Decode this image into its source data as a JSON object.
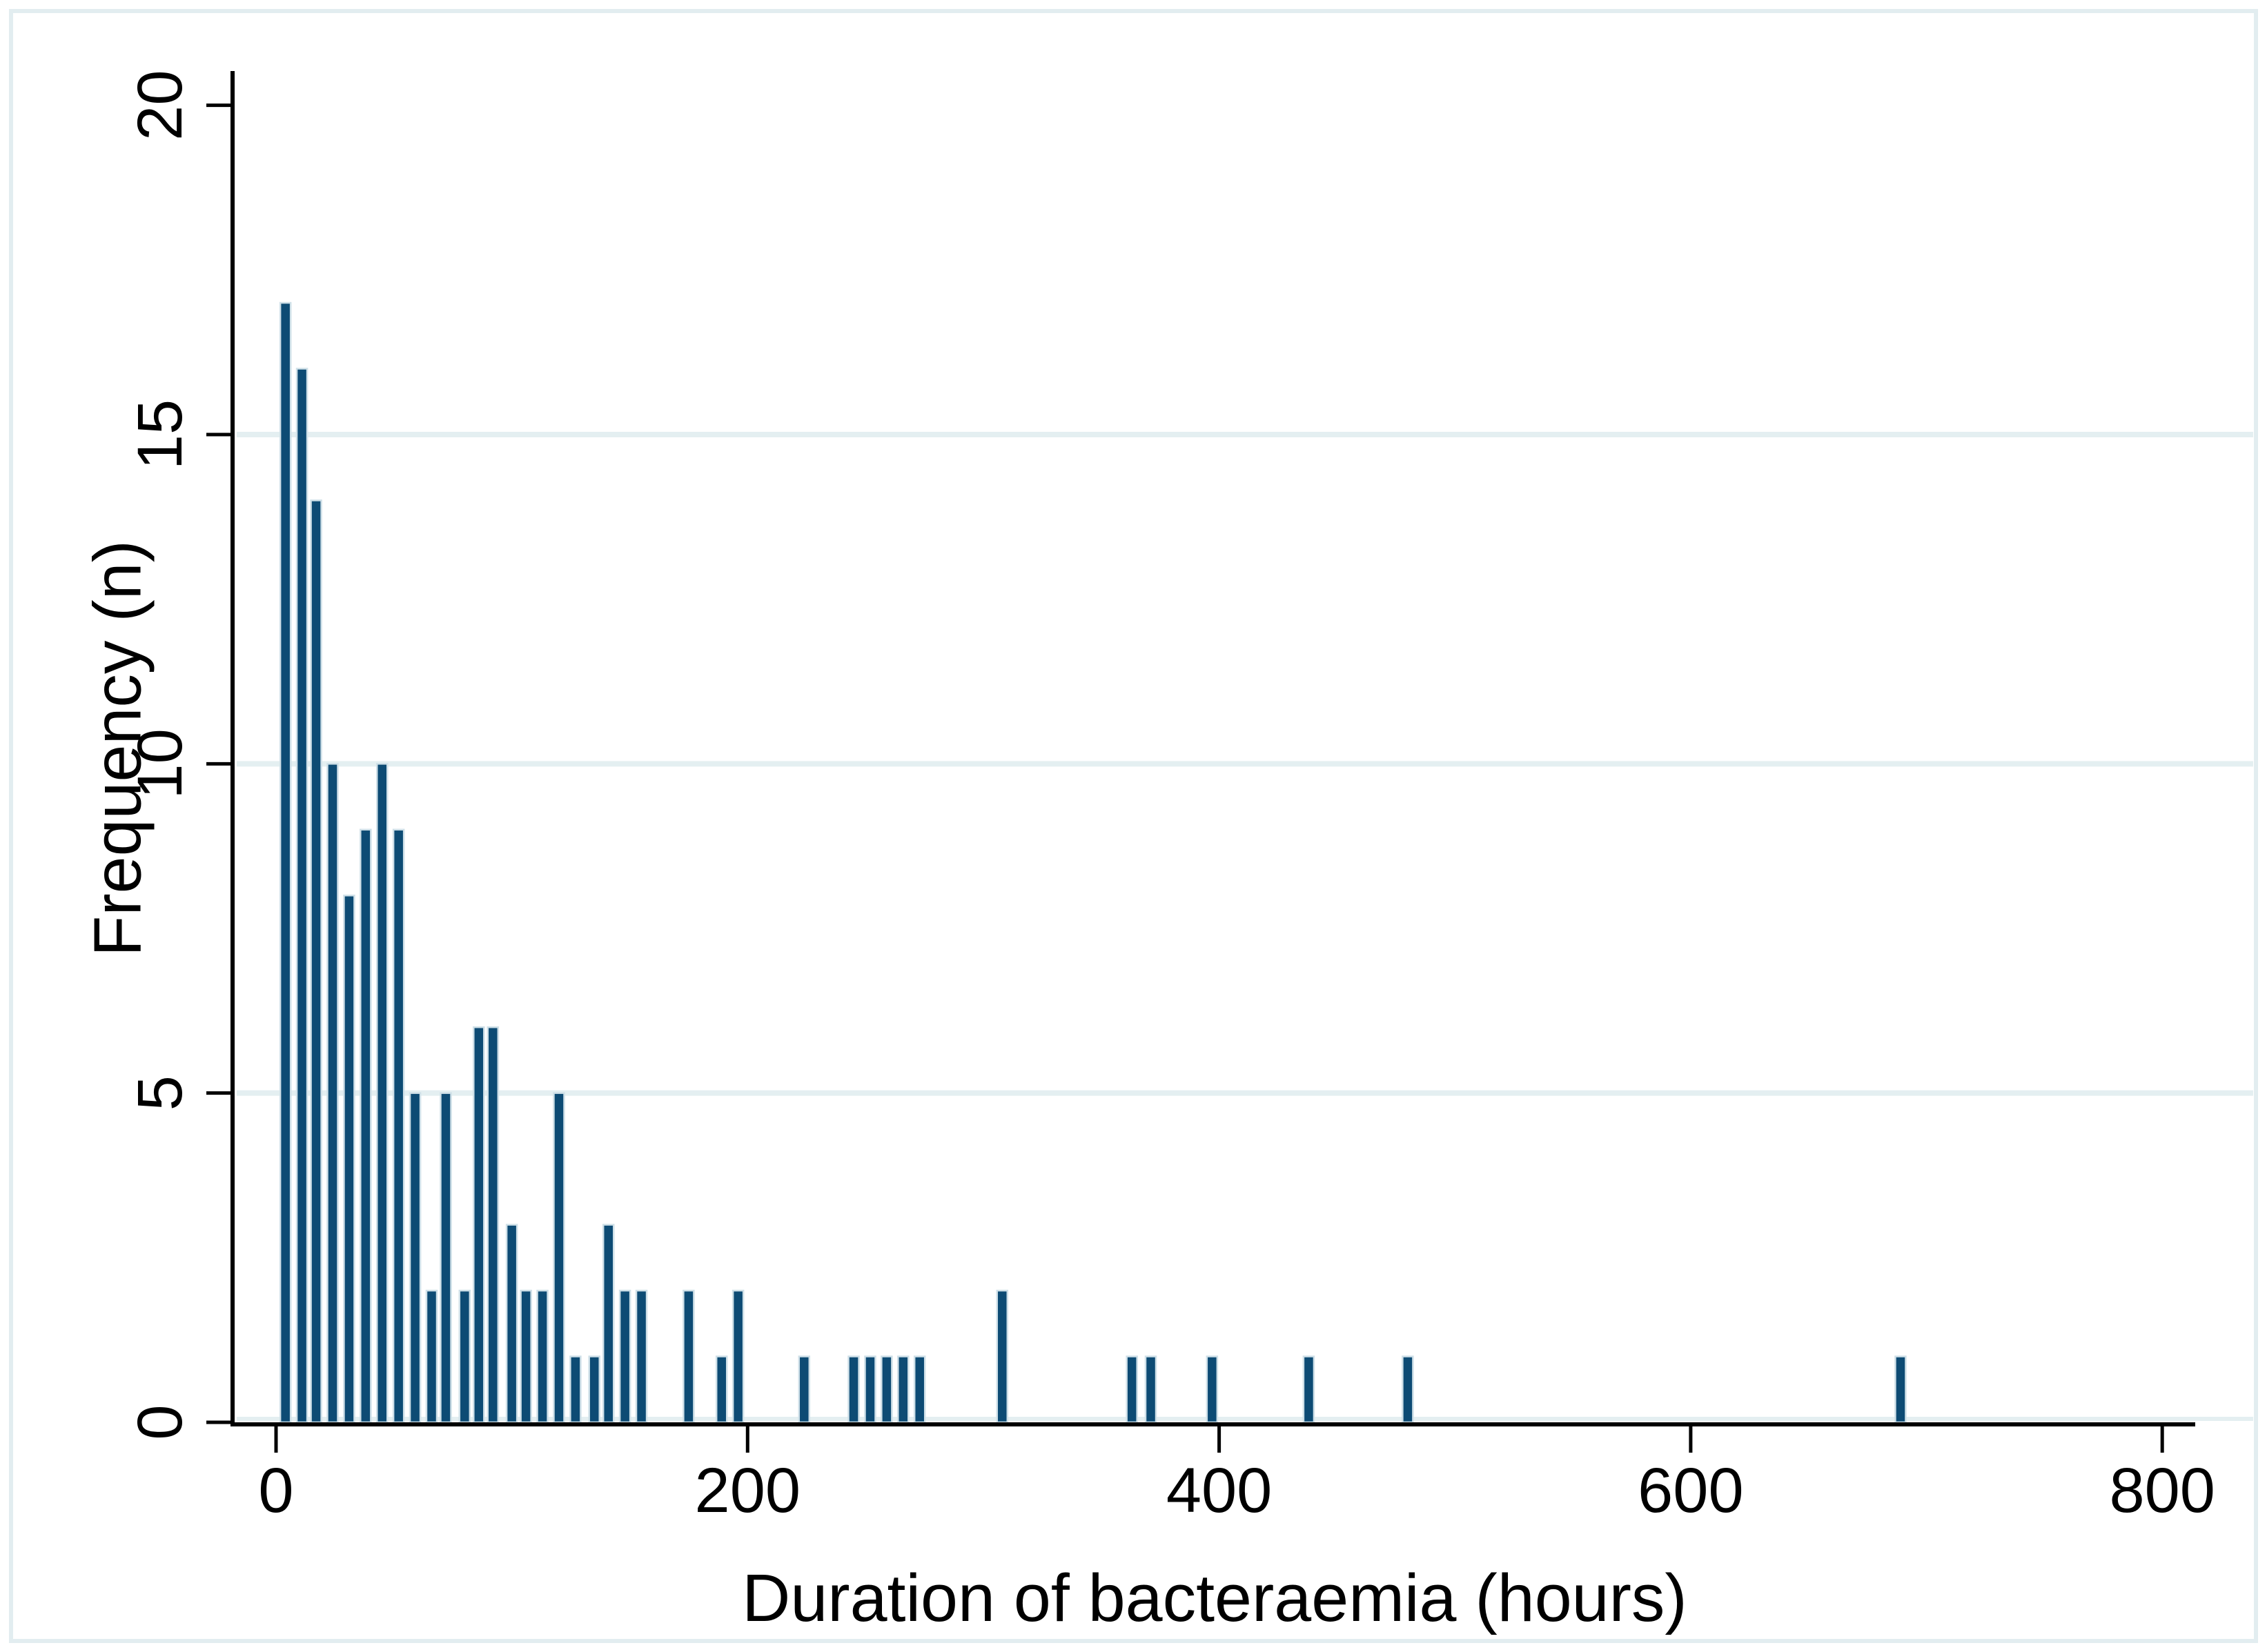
{
  "figure": {
    "background_color": "#ffffff",
    "border_color": "#e2edf0"
  },
  "colors": {
    "bar_fill": "#0d4b74",
    "bar_outline": "#cfe0e8",
    "gridline": "#e4eff1",
    "axis": "#000000",
    "text": "#000000"
  },
  "chart_data": {
    "type": "bar",
    "subtype": "histogram",
    "title": "",
    "xlabel": "Duration of bacteraemia (hours)",
    "ylabel": "Frequency (n)",
    "xlim": [
      -18.44,
      813.7
    ],
    "ylim": [
      0,
      20.52
    ],
    "x_ticks": [
      0,
      200,
      400,
      600,
      800
    ],
    "y_ticks": [
      0,
      5,
      10,
      15,
      20
    ],
    "grid_y_values": [
      5,
      10,
      15
    ],
    "grid": "horizontal-light",
    "legend_position": "none",
    "y_tick_label_rotation_deg": -90,
    "bin_width_hours": 7,
    "bar_width_hours": 4.4,
    "bars": [
      {
        "x": 4,
        "n": 17
      },
      {
        "x": 11,
        "n": 16
      },
      {
        "x": 17,
        "n": 14
      },
      {
        "x": 24,
        "n": 10
      },
      {
        "x": 31,
        "n": 8
      },
      {
        "x": 38,
        "n": 9
      },
      {
        "x": 45,
        "n": 10
      },
      {
        "x": 52,
        "n": 9
      },
      {
        "x": 59,
        "n": 5
      },
      {
        "x": 66,
        "n": 2
      },
      {
        "x": 72,
        "n": 5
      },
      {
        "x": 80,
        "n": 2
      },
      {
        "x": 86,
        "n": 6
      },
      {
        "x": 92,
        "n": 6
      },
      {
        "x": 100,
        "n": 3
      },
      {
        "x": 106,
        "n": 2
      },
      {
        "x": 113,
        "n": 2
      },
      {
        "x": 120,
        "n": 5
      },
      {
        "x": 127,
        "n": 1
      },
      {
        "x": 135,
        "n": 1
      },
      {
        "x": 141,
        "n": 3
      },
      {
        "x": 148,
        "n": 2
      },
      {
        "x": 155,
        "n": 2
      },
      {
        "x": 175,
        "n": 2
      },
      {
        "x": 189,
        "n": 1
      },
      {
        "x": 196,
        "n": 2
      },
      {
        "x": 224,
        "n": 1
      },
      {
        "x": 245,
        "n": 1
      },
      {
        "x": 252,
        "n": 1
      },
      {
        "x": 259,
        "n": 1
      },
      {
        "x": 266,
        "n": 1
      },
      {
        "x": 273,
        "n": 1
      },
      {
        "x": 308,
        "n": 2
      },
      {
        "x": 363,
        "n": 1
      },
      {
        "x": 371,
        "n": 1
      },
      {
        "x": 397,
        "n": 1
      },
      {
        "x": 438,
        "n": 1
      },
      {
        "x": 480,
        "n": 1
      },
      {
        "x": 689,
        "n": 1
      }
    ]
  }
}
